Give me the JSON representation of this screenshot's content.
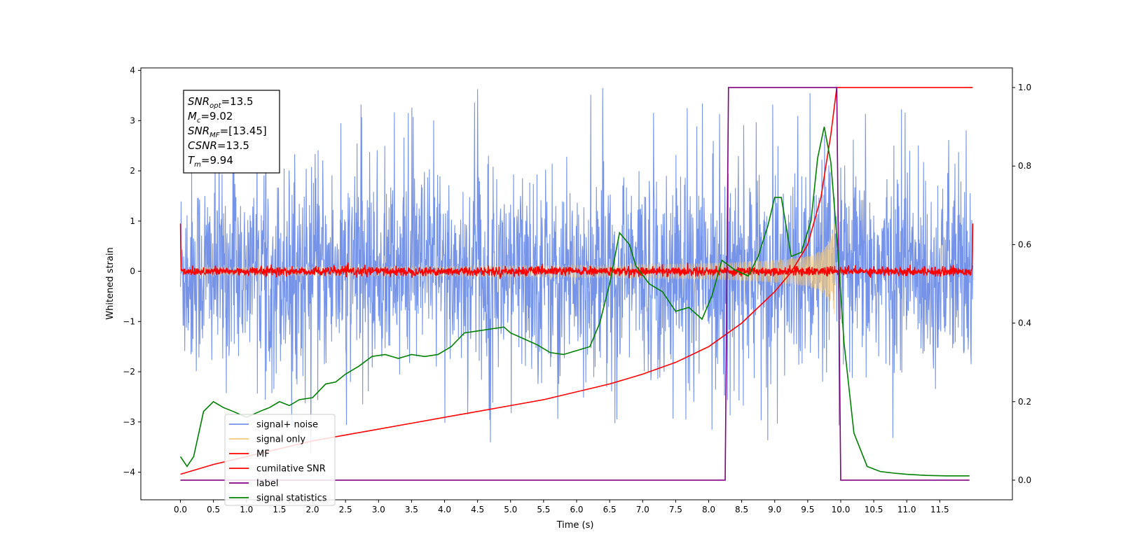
{
  "chart_data": {
    "type": "line",
    "xlabel": "Time (s)",
    "ylabel": "Whitened strain",
    "xlim": [
      -0.6,
      12.6
    ],
    "ylim": [
      -4.55,
      4.05
    ],
    "y2lim": [
      -0.05,
      1.05
    ],
    "xticks": [
      "0.0",
      "0.5",
      "1.0",
      "1.5",
      "2.0",
      "2.5",
      "3.0",
      "3.5",
      "4.0",
      "4.5",
      "5.0",
      "5.5",
      "6.0",
      "6.5",
      "7.0",
      "7.5",
      "8.0",
      "8.5",
      "9.0",
      "9.5",
      "10.0",
      "10.5",
      "11.0",
      "11.5"
    ],
    "xtick_values": [
      0,
      0.5,
      1,
      1.5,
      2,
      2.5,
      3,
      3.5,
      4,
      4.5,
      5,
      5.5,
      6,
      6.5,
      7,
      7.5,
      8,
      8.5,
      9,
      9.5,
      10,
      10.5,
      11,
      11.5
    ],
    "yticks": [
      "4",
      "3",
      "2",
      "1",
      "0",
      "−1",
      "−2",
      "−3",
      "−4"
    ],
    "ytick_values": [
      4,
      3,
      2,
      1,
      0,
      -1,
      -2,
      -3,
      -4
    ],
    "y2ticks": [
      "0.0",
      "0.2",
      "0.4",
      "0.6",
      "0.8",
      "1.0"
    ],
    "y2tick_values": [
      0,
      0.2,
      0.4,
      0.6,
      0.8,
      1.0
    ],
    "annotation": {
      "lines": [
        {
          "base": "SNR",
          "sub": "opt",
          "value": "=13.5"
        },
        {
          "base": "M",
          "sub": "c",
          "value": "=9.02"
        },
        {
          "base": "SNR",
          "sub": "MF",
          "value": "=[13.45]"
        },
        {
          "base": "CSNR",
          "sub": "",
          "value": "=13.5"
        },
        {
          "base": "T",
          "sub": "m",
          "value": "=9.94"
        }
      ]
    },
    "legend_position": "lower-left",
    "series": [
      {
        "name": "signal+ noise",
        "color": "#7593e8",
        "axis": "left",
        "kind": "noise",
        "x_range": [
          0,
          12
        ],
        "amplitude": 1.0,
        "peak": 3.65,
        "trough": -3.65
      },
      {
        "name": "signal only",
        "color": "#f5c97a",
        "axis": "left",
        "kind": "chirp",
        "t_merge": 9.94,
        "max_amplitude": 0.95
      },
      {
        "name": "MF",
        "color": "#ff0000",
        "axis": "left",
        "kind": "mf",
        "x_range": [
          0,
          12
        ],
        "level": 0.0,
        "amplitude": 0.1
      },
      {
        "name": "cumilative SNR",
        "color": "#ff0000",
        "axis": "right",
        "points": [
          [
            0,
            0.015
          ],
          [
            0.5,
            0.04
          ],
          [
            1,
            0.06
          ],
          [
            1.5,
            0.08
          ],
          [
            2,
            0.1
          ],
          [
            2.5,
            0.115
          ],
          [
            3,
            0.13
          ],
          [
            3.5,
            0.145
          ],
          [
            4,
            0.16
          ],
          [
            4.5,
            0.175
          ],
          [
            5,
            0.19
          ],
          [
            5.5,
            0.205
          ],
          [
            6,
            0.225
          ],
          [
            6.5,
            0.245
          ],
          [
            7,
            0.27
          ],
          [
            7.5,
            0.3
          ],
          [
            8,
            0.34
          ],
          [
            8.5,
            0.4
          ],
          [
            9,
            0.48
          ],
          [
            9.25,
            0.53
          ],
          [
            9.5,
            0.6
          ],
          [
            9.7,
            0.72
          ],
          [
            9.85,
            0.88
          ],
          [
            9.94,
            1.0
          ],
          [
            12,
            1.0
          ]
        ]
      },
      {
        "name": "label",
        "color": "#800080",
        "axis": "right",
        "points": [
          [
            0,
            0
          ],
          [
            8.25,
            0
          ],
          [
            8.3,
            1.0
          ],
          [
            9.94,
            1.0
          ],
          [
            10.0,
            0
          ],
          [
            11.95,
            0
          ]
        ]
      },
      {
        "name": "signal statistics",
        "color": "#008000",
        "axis": "right",
        "points": [
          [
            0,
            0.06
          ],
          [
            0.1,
            0.035
          ],
          [
            0.2,
            0.06
          ],
          [
            0.35,
            0.175
          ],
          [
            0.5,
            0.2
          ],
          [
            0.65,
            0.185
          ],
          [
            0.8,
            0.175
          ],
          [
            1.0,
            0.16
          ],
          [
            1.2,
            0.175
          ],
          [
            1.35,
            0.185
          ],
          [
            1.5,
            0.2
          ],
          [
            1.65,
            0.19
          ],
          [
            1.8,
            0.205
          ],
          [
            2.0,
            0.21
          ],
          [
            2.2,
            0.245
          ],
          [
            2.35,
            0.25
          ],
          [
            2.5,
            0.27
          ],
          [
            2.7,
            0.29
          ],
          [
            2.9,
            0.315
          ],
          [
            3.1,
            0.32
          ],
          [
            3.3,
            0.31
          ],
          [
            3.5,
            0.32
          ],
          [
            3.7,
            0.315
          ],
          [
            3.9,
            0.32
          ],
          [
            4.1,
            0.34
          ],
          [
            4.3,
            0.375
          ],
          [
            4.5,
            0.38
          ],
          [
            4.7,
            0.385
          ],
          [
            4.9,
            0.39
          ],
          [
            5.0,
            0.375
          ],
          [
            5.2,
            0.36
          ],
          [
            5.4,
            0.345
          ],
          [
            5.6,
            0.325
          ],
          [
            5.8,
            0.32
          ],
          [
            6.0,
            0.33
          ],
          [
            6.2,
            0.34
          ],
          [
            6.35,
            0.4
          ],
          [
            6.5,
            0.5
          ],
          [
            6.65,
            0.63
          ],
          [
            6.8,
            0.6
          ],
          [
            6.9,
            0.545
          ],
          [
            7.1,
            0.5
          ],
          [
            7.3,
            0.48
          ],
          [
            7.5,
            0.43
          ],
          [
            7.7,
            0.44
          ],
          [
            7.9,
            0.41
          ],
          [
            8.05,
            0.47
          ],
          [
            8.2,
            0.56
          ],
          [
            8.4,
            0.535
          ],
          [
            8.6,
            0.52
          ],
          [
            8.75,
            0.57
          ],
          [
            8.9,
            0.65
          ],
          [
            9.0,
            0.72
          ],
          [
            9.1,
            0.72
          ],
          [
            9.25,
            0.57
          ],
          [
            9.4,
            0.58
          ],
          [
            9.55,
            0.66
          ],
          [
            9.65,
            0.82
          ],
          [
            9.75,
            0.9
          ],
          [
            9.85,
            0.81
          ],
          [
            9.95,
            0.6
          ],
          [
            10.05,
            0.35
          ],
          [
            10.2,
            0.12
          ],
          [
            10.4,
            0.035
          ],
          [
            10.6,
            0.022
          ],
          [
            10.8,
            0.018
          ],
          [
            11.0,
            0.015
          ],
          [
            11.3,
            0.012
          ],
          [
            11.6,
            0.011
          ],
          [
            11.95,
            0.011
          ]
        ]
      }
    ]
  }
}
